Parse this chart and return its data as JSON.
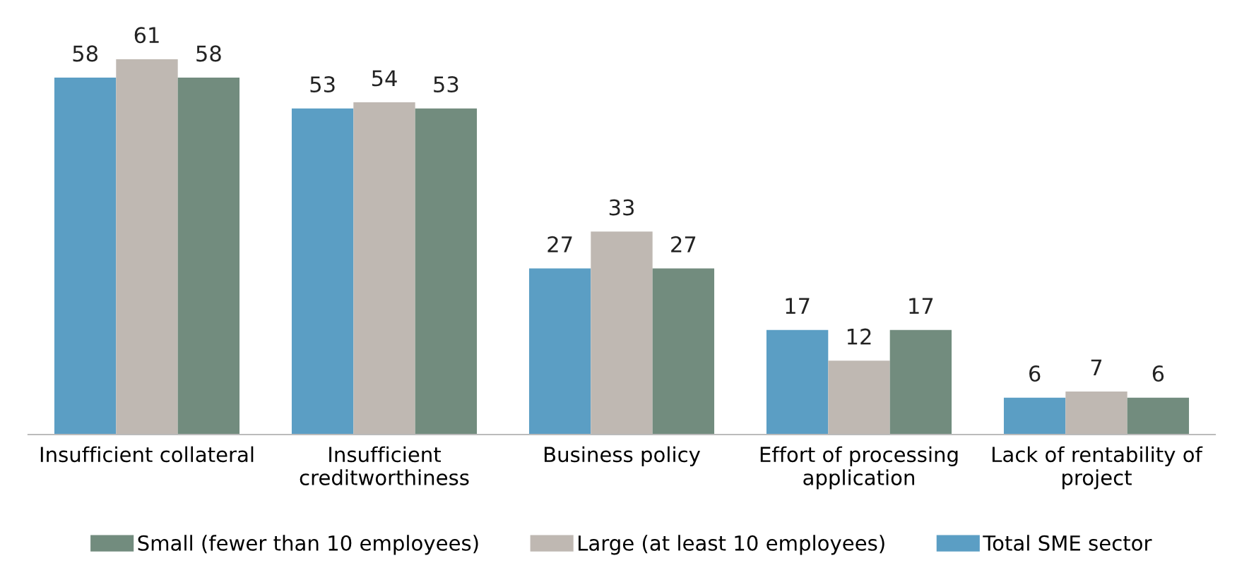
{
  "chart_data": {
    "type": "bar",
    "categories": [
      "Insufficient collateral",
      "Insufficient\ncreditworthiness",
      "Business policy",
      "Effort of processing\napplication",
      "Lack of rentability of\nproject"
    ],
    "series": [
      {
        "name": "Total SME sector",
        "color": "#5b9ec4",
        "values": [
          58,
          53,
          27,
          17,
          6
        ]
      },
      {
        "name": "Large (at least 10 employees)",
        "color": "#bfb8b2",
        "values": [
          61,
          54,
          33,
          12,
          7
        ]
      },
      {
        "name": "Small (fewer than 10 employees)",
        "color": "#728c7e",
        "values": [
          58,
          53,
          27,
          17,
          6
        ]
      }
    ],
    "data_labels": true,
    "legend": "bottom",
    "grid": false
  }
}
